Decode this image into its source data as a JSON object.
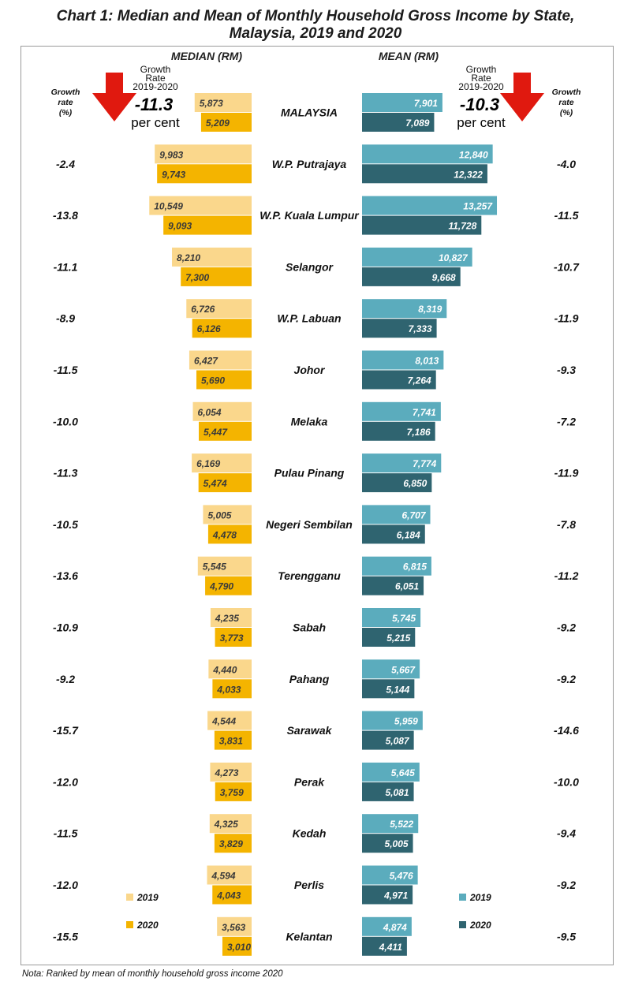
{
  "title_line1": "Chart 1: Median and Mean of Monthly Household Gross Income by State,",
  "title_line2": "Malaysia, 2019 and 2020",
  "note": "Nota: Ranked by mean of monthly household gross income 2020",
  "colors": {
    "median_2019": "#fad78c",
    "median_2020": "#f4b400",
    "mean_2019": "#5bacbd",
    "mean_2020": "#2f6470",
    "arrow": "#e0190f"
  },
  "chart_data": {
    "type": "bar",
    "layout": "butterfly",
    "left_panel_title": "MEDIAN (RM)",
    "right_panel_title": "MEAN (RM)",
    "growth_header": [
      "Growth",
      "rate",
      "(%)"
    ],
    "left_highlight": {
      "label_lines": [
        "Growth",
        "Rate",
        "2019-2020"
      ],
      "value": "-11.3",
      "unit": "per cent"
    },
    "right_highlight": {
      "label_lines": [
        "Growth",
        "Rate",
        "2019-2020"
      ],
      "value": "-10.3",
      "unit": "per cent"
    },
    "legend_left": [
      {
        "label": "2019",
        "color": "#fad78c"
      },
      {
        "label": "2020",
        "color": "#f4b400"
      }
    ],
    "legend_right": [
      {
        "label": "2019",
        "color": "#5bacbd"
      },
      {
        "label": "2020",
        "color": "#2f6470"
      }
    ],
    "categories": [
      "MALAYSIA",
      "W.P. Putrajaya",
      "W.P. Kuala Lumpur",
      "Selangor",
      "W.P. Labuan",
      "Johor",
      "Melaka",
      "Pulau Pinang",
      "Negeri Sembilan",
      "Terengganu",
      "Sabah",
      "Pahang",
      "Sarawak",
      "Perak",
      "Kedah",
      "Perlis",
      "Kelantan"
    ],
    "median_2019": [
      5873,
      9983,
      10549,
      8210,
      6726,
      6427,
      6054,
      6169,
      5005,
      5545,
      4235,
      4440,
      4544,
      4273,
      4325,
      4594,
      3563
    ],
    "median_2020": [
      5209,
      9743,
      9093,
      7300,
      6126,
      5690,
      5447,
      5474,
      4478,
      4790,
      3773,
      4033,
      3831,
      3759,
      3829,
      4043,
      3010
    ],
    "mean_2019": [
      7901,
      12840,
      13257,
      10827,
      8319,
      8013,
      7741,
      7774,
      6707,
      6815,
      5745,
      5667,
      5959,
      5645,
      5522,
      5476,
      4874
    ],
    "mean_2020": [
      7089,
      12322,
      11728,
      9668,
      7333,
      7264,
      7186,
      6850,
      6184,
      6051,
      5215,
      5144,
      5087,
      5081,
      5005,
      4971,
      4411
    ],
    "median_growth": [
      null,
      "-2.4",
      "-13.8",
      "-11.1",
      "-8.9",
      "-11.5",
      "-10.0",
      "-11.3",
      "-10.5",
      "-13.6",
      "-10.9",
      "-9.2",
      "-15.7",
      "-12.0",
      "-11.5",
      "-12.0",
      "-15.5"
    ],
    "mean_growth": [
      null,
      "-4.0",
      "-11.5",
      "-10.7",
      "-11.9",
      "-9.3",
      "-7.2",
      "-11.9",
      "-7.8",
      "-11.2",
      "-9.2",
      "-9.2",
      "-14.6",
      "-10.0",
      "-9.4",
      "-9.2",
      "-9.5"
    ]
  }
}
